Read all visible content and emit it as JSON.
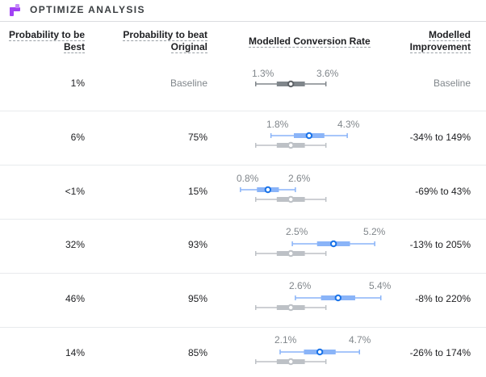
{
  "app": {
    "title": "OPTIMIZE ANALYSIS"
  },
  "columns": {
    "prob_best": [
      "Probability to be",
      "Best"
    ],
    "prob_beat": [
      "Probability to beat",
      "Original"
    ],
    "rate": "Modelled Conversion Rate",
    "improvement": [
      "Modelled",
      "Improvement"
    ]
  },
  "colors": {
    "original": "#80868b",
    "variant": "#8ab4f8",
    "variant_dot": "#1a73e8"
  },
  "rows": [
    {
      "prob_best": "1%",
      "prob_beat": "Baseline",
      "low": 1.3,
      "high": 3.6,
      "low_label": "1.3%",
      "high_label": "3.6%",
      "improvement": "Baseline",
      "baseline": true
    },
    {
      "prob_best": "6%",
      "prob_beat": "75%",
      "low": 1.8,
      "high": 4.3,
      "low_label": "1.8%",
      "high_label": "4.3%",
      "improvement": "-34% to 149%"
    },
    {
      "prob_best": "<1%",
      "prob_beat": "15%",
      "low": 0.8,
      "high": 2.6,
      "low_label": "0.8%",
      "high_label": "2.6%",
      "improvement": "-69% to 43%"
    },
    {
      "prob_best": "32%",
      "prob_beat": "93%",
      "low": 2.5,
      "high": 5.2,
      "low_label": "2.5%",
      "high_label": "5.2%",
      "improvement": "-13% to 205%"
    },
    {
      "prob_best": "46%",
      "prob_beat": "95%",
      "low": 2.6,
      "high": 5.4,
      "low_label": "2.6%",
      "high_label": "5.4%",
      "improvement": "-8% to 220%"
    },
    {
      "prob_best": "14%",
      "prob_beat": "85%",
      "low": 2.1,
      "high": 4.7,
      "low_label": "2.1%",
      "high_label": "4.7%",
      "improvement": "-26% to 174%"
    }
  ]
}
